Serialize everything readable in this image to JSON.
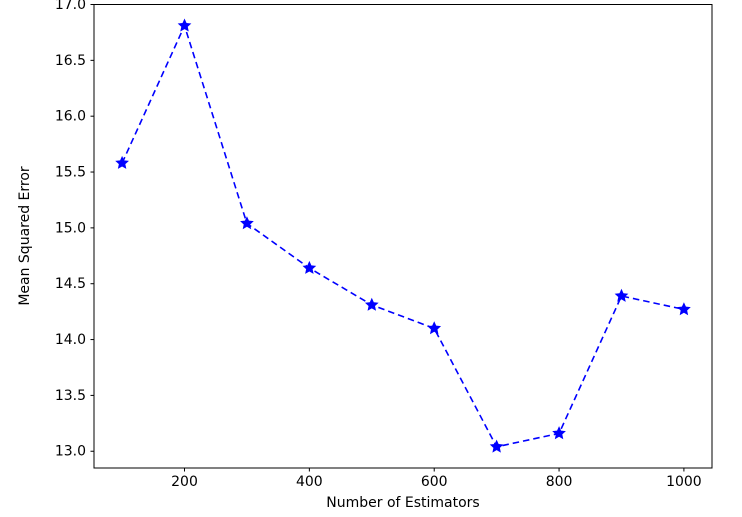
{
  "figure": {
    "background": "#ffffff",
    "text_color": "#000000",
    "spine_color": "#000000"
  },
  "chart_data": {
    "type": "line",
    "title": "",
    "xlabel": "Number of Estimators",
    "ylabel": "Mean Squared Error",
    "x": [
      100,
      200,
      300,
      400,
      500,
      600,
      700,
      800,
      900,
      1000
    ],
    "series": [
      {
        "name": "Mean Squared Error",
        "values": [
          15.58,
          16.81,
          15.04,
          14.64,
          14.31,
          14.1,
          13.04,
          13.16,
          14.39,
          14.27
        ],
        "color": "#0000ff",
        "line_style": "dashed",
        "marker": "star"
      }
    ],
    "xlim": [
      55,
      1045
    ],
    "ylim": [
      12.85,
      17.0
    ],
    "xticks": [
      200,
      400,
      600,
      800,
      1000
    ],
    "xtick_labels": [
      "200",
      "400",
      "600",
      "800",
      "1000"
    ],
    "yticks": [
      13.0,
      13.5,
      14.0,
      14.5,
      15.0,
      15.5,
      16.0,
      16.5,
      17.0
    ],
    "ytick_labels": [
      "13.0",
      "13.5",
      "14.0",
      "14.5",
      "15.0",
      "15.5",
      "16.0",
      "16.5",
      "17.0"
    ],
    "grid": false,
    "legend": "none"
  }
}
